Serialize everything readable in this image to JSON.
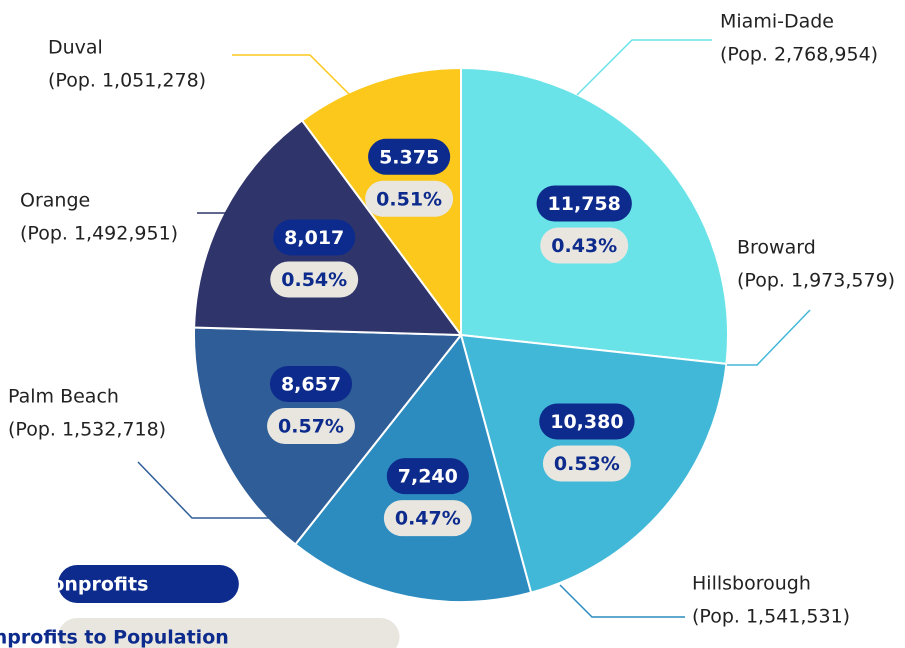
{
  "chart_data": {
    "type": "pie",
    "categories": [
      "Miami-Dade",
      "Broward",
      "Hillsborough",
      "Palm Beach",
      "Orange",
      "Duval"
    ],
    "values": [
      2768954,
      1973579,
      1541531,
      1532718,
      1492951,
      1051278
    ],
    "value_labels": [
      "(Pop. 2,768,954)",
      "(Pop. 1,973,579)",
      "(Pop. 1,541,531)",
      "(Pop. 1,532,718)",
      "(Pop. 1,492,951)",
      "(Pop. 1,051,278)"
    ],
    "colors": [
      "#6ae3e8",
      "#42b8d8",
      "#2d8cbf",
      "#2e5d98",
      "#2f356b",
      "#fbc81b"
    ],
    "series": [
      {
        "name": "#of Nonprofits",
        "color": "#0d2b8c",
        "values": [
          11758,
          10380,
          7240,
          8657,
          8017,
          5375
        ],
        "value_labels": [
          "11,758",
          "10,380",
          "7,240",
          "8,657",
          "8,017",
          "5.375"
        ]
      },
      {
        "name": "% of Nonprofits to Population",
        "color": "#e8e6df",
        "values": [
          0.43,
          0.53,
          0.47,
          0.57,
          0.54,
          0.51
        ],
        "value_labels": [
          "0.43%",
          "0.53%",
          "0.47%",
          "0.57%",
          "0.54%",
          "0.51%"
        ]
      }
    ]
  }
}
